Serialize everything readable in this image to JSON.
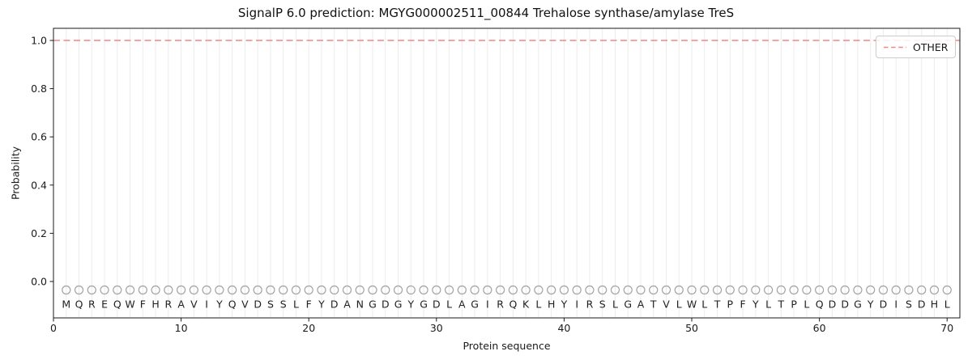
{
  "chart_data": {
    "type": "line",
    "title": "SignalP 6.0 prediction: MGYG000002511_00844 Trehalose synthase/amylase TreS",
    "xlabel": "Protein sequence",
    "ylabel": "Probability",
    "xlim": [
      0,
      71
    ],
    "ylim": [
      -0.15,
      1.05
    ],
    "xticks": [
      0,
      10,
      20,
      30,
      40,
      50,
      60,
      70
    ],
    "xticklabels": [
      "0",
      "10",
      "20",
      "30",
      "40",
      "50",
      "60",
      "70"
    ],
    "yticks": [
      0.0,
      0.2,
      0.4,
      0.6,
      0.8,
      1.0
    ],
    "yticklabels": [
      "0.0",
      "0.2",
      "0.4",
      "0.6",
      "0.8",
      "1.0"
    ],
    "grid": {
      "vertical_per_residue": true,
      "horizontal": false
    },
    "sequence": "MQREQWFHRAVIYQVDSSLFYDANGDGYGDLAGIRQKLHYIRSLGATVLWLTPFYLTPLQDDGYDISDHL",
    "series": [
      {
        "name": "OTHER",
        "style": "dashed",
        "color": "#ef8787",
        "x": [
          1,
          2,
          3,
          4,
          5,
          6,
          7,
          8,
          9,
          10,
          11,
          12,
          13,
          14,
          15,
          16,
          17,
          18,
          19,
          20,
          21,
          22,
          23,
          24,
          25,
          26,
          27,
          28,
          29,
          30,
          31,
          32,
          33,
          34,
          35,
          36,
          37,
          38,
          39,
          40,
          41,
          42,
          43,
          44,
          45,
          46,
          47,
          48,
          49,
          50,
          51,
          52,
          53,
          54,
          55,
          56,
          57,
          58,
          59,
          60,
          61,
          62,
          63,
          64,
          65,
          66,
          67,
          68,
          69,
          70
        ],
        "values": [
          1.0,
          1.0,
          1.0,
          1.0,
          1.0,
          1.0,
          1.0,
          1.0,
          1.0,
          1.0,
          1.0,
          1.0,
          1.0,
          1.0,
          1.0,
          1.0,
          1.0,
          1.0,
          1.0,
          1.0,
          1.0,
          1.0,
          1.0,
          1.0,
          1.0,
          1.0,
          1.0,
          1.0,
          1.0,
          1.0,
          1.0,
          1.0,
          1.0,
          1.0,
          1.0,
          1.0,
          1.0,
          1.0,
          1.0,
          1.0,
          1.0,
          1.0,
          1.0,
          1.0,
          1.0,
          1.0,
          1.0,
          1.0,
          1.0,
          1.0,
          1.0,
          1.0,
          1.0,
          1.0,
          1.0,
          1.0,
          1.0,
          1.0,
          1.0,
          1.0,
          1.0,
          1.0,
          1.0,
          1.0,
          1.0,
          1.0,
          1.0,
          1.0,
          1.0,
          1.0
        ]
      }
    ],
    "legend": {
      "position": "upper right",
      "entries": [
        {
          "label": "OTHER",
          "style": "dashed",
          "color": "#ef8787"
        }
      ]
    },
    "marker": {
      "shape": "open-circle",
      "color": "#a3a3a3"
    }
  },
  "colors": {
    "background": "#ffffff",
    "spine": "#1a1a1a",
    "grid": "#ececec",
    "tick_text": "#1a1a1a",
    "residue_text": "#1f1f1f",
    "marker": "#a3a3a3",
    "line_other": "#ef8787",
    "legend_border": "#cccccc"
  }
}
